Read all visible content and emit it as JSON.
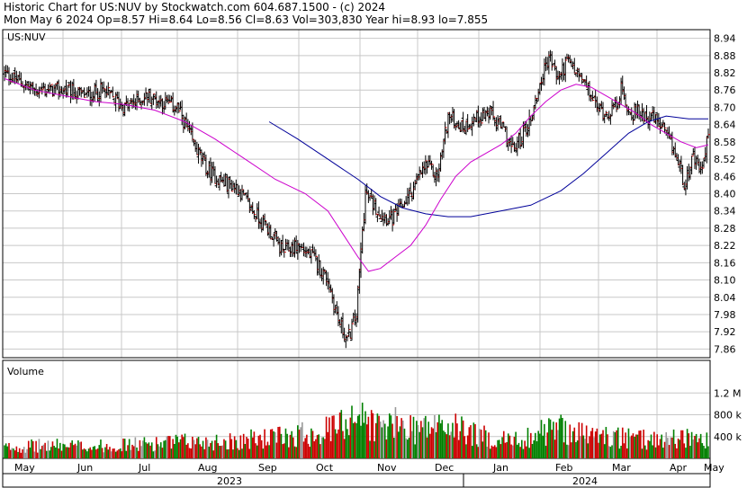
{
  "header": {
    "line1": "Historic Chart for US:NUV by Stockwatch.com 604.687.1500 - (c) 2024",
    "line2": "Mon May  6 2024  Op=8.57 Hi=8.64 Lo=8.56 Cl=8.63 Vol=303,830  Year hi=8.93  lo=7.855"
  },
  "chart_data": {
    "type": "ohlc",
    "symbol_label": "US:NUV",
    "volume_label": "Volume",
    "price_ticks": [
      "8.94",
      "8.88",
      "8.82",
      "8.76",
      "8.70",
      "8.64",
      "8.58",
      "8.52",
      "8.46",
      "8.40",
      "8.34",
      "8.28",
      "8.22",
      "8.16",
      "8.10",
      "8.04",
      "7.98",
      "7.92",
      "7.86"
    ],
    "price_ylim": [
      7.83,
      8.97
    ],
    "volume_ticks": [
      "1.2 M",
      "800 k",
      "400 k"
    ],
    "volume_tick_values": [
      1200000,
      800000,
      400000
    ],
    "volume_ylim": [
      0,
      1700000
    ],
    "month_labels": [
      "May",
      "Jun",
      "Jul",
      "Aug",
      "Sep",
      "Oct",
      "Nov",
      "Dec",
      "Jan",
      "Feb",
      "Mar",
      "Apr",
      "May"
    ],
    "year_labels": [
      "2023",
      "2024"
    ],
    "colors": {
      "up": "#008000",
      "down": "#cc0000",
      "neutral": "#999999",
      "ma_short": "#cc00cc",
      "ma_long": "#000099",
      "grid": "#c8c8c8"
    },
    "moving_average_short": [
      [
        0,
        8.8
      ],
      [
        20,
        8.76
      ],
      [
        40,
        8.74
      ],
      [
        60,
        8.72
      ],
      [
        80,
        8.71
      ],
      [
        100,
        8.69
      ],
      [
        120,
        8.65
      ],
      [
        140,
        8.59
      ],
      [
        160,
        8.52
      ],
      [
        180,
        8.45
      ],
      [
        200,
        8.4
      ],
      [
        215,
        8.34
      ],
      [
        225,
        8.26
      ],
      [
        235,
        8.18
      ],
      [
        242,
        8.13
      ],
      [
        250,
        8.14
      ],
      [
        260,
        8.18
      ],
      [
        270,
        8.22
      ],
      [
        280,
        8.29
      ],
      [
        290,
        8.38
      ],
      [
        300,
        8.46
      ],
      [
        310,
        8.51
      ],
      [
        320,
        8.54
      ],
      [
        330,
        8.57
      ],
      [
        340,
        8.61
      ],
      [
        350,
        8.67
      ],
      [
        360,
        8.72
      ],
      [
        370,
        8.76
      ],
      [
        380,
        8.78
      ],
      [
        390,
        8.77
      ],
      [
        400,
        8.74
      ],
      [
        410,
        8.71
      ],
      [
        420,
        8.68
      ],
      [
        430,
        8.64
      ],
      [
        440,
        8.61
      ],
      [
        450,
        8.58
      ],
      [
        460,
        8.56
      ],
      [
        468,
        8.57
      ]
    ],
    "moving_average_long": [
      [
        176,
        8.65
      ],
      [
        195,
        8.59
      ],
      [
        215,
        8.52
      ],
      [
        235,
        8.45
      ],
      [
        250,
        8.39
      ],
      [
        265,
        8.35
      ],
      [
        280,
        8.33
      ],
      [
        295,
        8.32
      ],
      [
        310,
        8.32
      ],
      [
        330,
        8.34
      ],
      [
        350,
        8.36
      ],
      [
        370,
        8.41
      ],
      [
        385,
        8.47
      ],
      [
        400,
        8.54
      ],
      [
        415,
        8.61
      ],
      [
        428,
        8.65
      ],
      [
        440,
        8.67
      ],
      [
        455,
        8.66
      ],
      [
        468,
        8.66
      ]
    ],
    "anchors": [
      [
        0,
        8.82
      ],
      [
        20,
        8.76
      ],
      [
        40,
        8.76
      ],
      [
        55,
        8.74
      ],
      [
        65,
        8.76
      ],
      [
        80,
        8.7
      ],
      [
        95,
        8.74
      ],
      [
        105,
        8.72
      ],
      [
        115,
        8.7
      ],
      [
        125,
        8.58
      ],
      [
        135,
        8.48
      ],
      [
        145,
        8.44
      ],
      [
        155,
        8.42
      ],
      [
        165,
        8.34
      ],
      [
        175,
        8.28
      ],
      [
        185,
        8.2
      ],
      [
        195,
        8.22
      ],
      [
        205,
        8.18
      ],
      [
        215,
        8.1
      ],
      [
        222,
        7.96
      ],
      [
        228,
        7.89
      ],
      [
        234,
        7.98
      ],
      [
        237,
        8.2
      ],
      [
        240,
        8.4
      ],
      [
        250,
        8.33
      ],
      [
        258,
        8.31
      ],
      [
        266,
        8.37
      ],
      [
        272,
        8.42
      ],
      [
        280,
        8.5
      ],
      [
        288,
        8.46
      ],
      [
        295,
        8.67
      ],
      [
        305,
        8.63
      ],
      [
        312,
        8.66
      ],
      [
        322,
        8.68
      ],
      [
        332,
        8.62
      ],
      [
        338,
        8.55
      ],
      [
        344,
        8.6
      ],
      [
        350,
        8.66
      ],
      [
        356,
        8.78
      ],
      [
        362,
        8.88
      ],
      [
        368,
        8.8
      ],
      [
        374,
        8.86
      ],
      [
        382,
        8.81
      ],
      [
        388,
        8.76
      ],
      [
        394,
        8.7
      ],
      [
        400,
        8.68
      ],
      [
        406,
        8.7
      ],
      [
        410,
        8.76
      ],
      [
        416,
        8.68
      ],
      [
        424,
        8.68
      ],
      [
        432,
        8.66
      ],
      [
        438,
        8.62
      ],
      [
        446,
        8.54
      ],
      [
        452,
        8.44
      ],
      [
        458,
        8.52
      ],
      [
        462,
        8.48
      ],
      [
        466,
        8.52
      ],
      [
        468,
        8.63
      ]
    ],
    "volume_anchors": [
      [
        0,
        200000
      ],
      [
        30,
        240000
      ],
      [
        60,
        220000
      ],
      [
        90,
        260000
      ],
      [
        120,
        300000
      ],
      [
        150,
        320000
      ],
      [
        180,
        380000
      ],
      [
        200,
        460000
      ],
      [
        215,
        520000
      ],
      [
        225,
        620000
      ],
      [
        232,
        900000
      ],
      [
        238,
        720000
      ],
      [
        250,
        580000
      ],
      [
        262,
        620000
      ],
      [
        275,
        560000
      ],
      [
        290,
        600000
      ],
      [
        305,
        520000
      ],
      [
        320,
        380000
      ],
      [
        340,
        320000
      ],
      [
        355,
        460000
      ],
      [
        370,
        560000
      ],
      [
        385,
        440000
      ],
      [
        400,
        400000
      ],
      [
        420,
        340000
      ],
      [
        440,
        360000
      ],
      [
        455,
        400000
      ],
      [
        468,
        300000
      ]
    ]
  }
}
